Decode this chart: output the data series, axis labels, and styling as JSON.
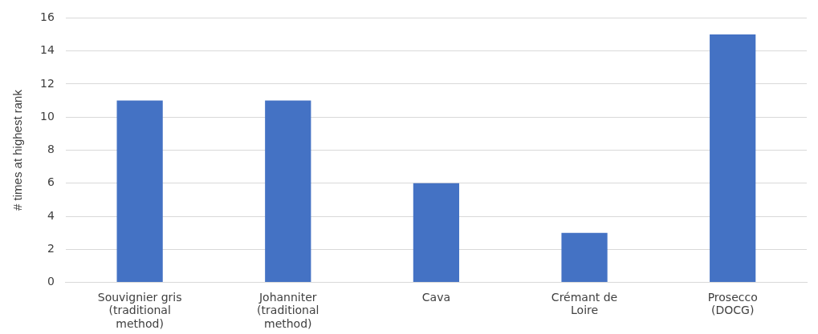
{
  "chart_data": {
    "type": "bar",
    "ylabel": "# times at highest rank",
    "categories": [
      "Souvignier gris\n(traditional\nmethod)",
      "Johanniter\n(traditional\nmethod)",
      "Cava",
      "Crémant de\nLoire",
      "Prosecco\n(DOCG)"
    ],
    "values": [
      11,
      11,
      6,
      3,
      15
    ],
    "color": "#4472c4",
    "ylim": [
      0,
      16
    ],
    "yticks": [
      0,
      2,
      4,
      6,
      8,
      10,
      12,
      14,
      16
    ],
    "grid": "y"
  }
}
